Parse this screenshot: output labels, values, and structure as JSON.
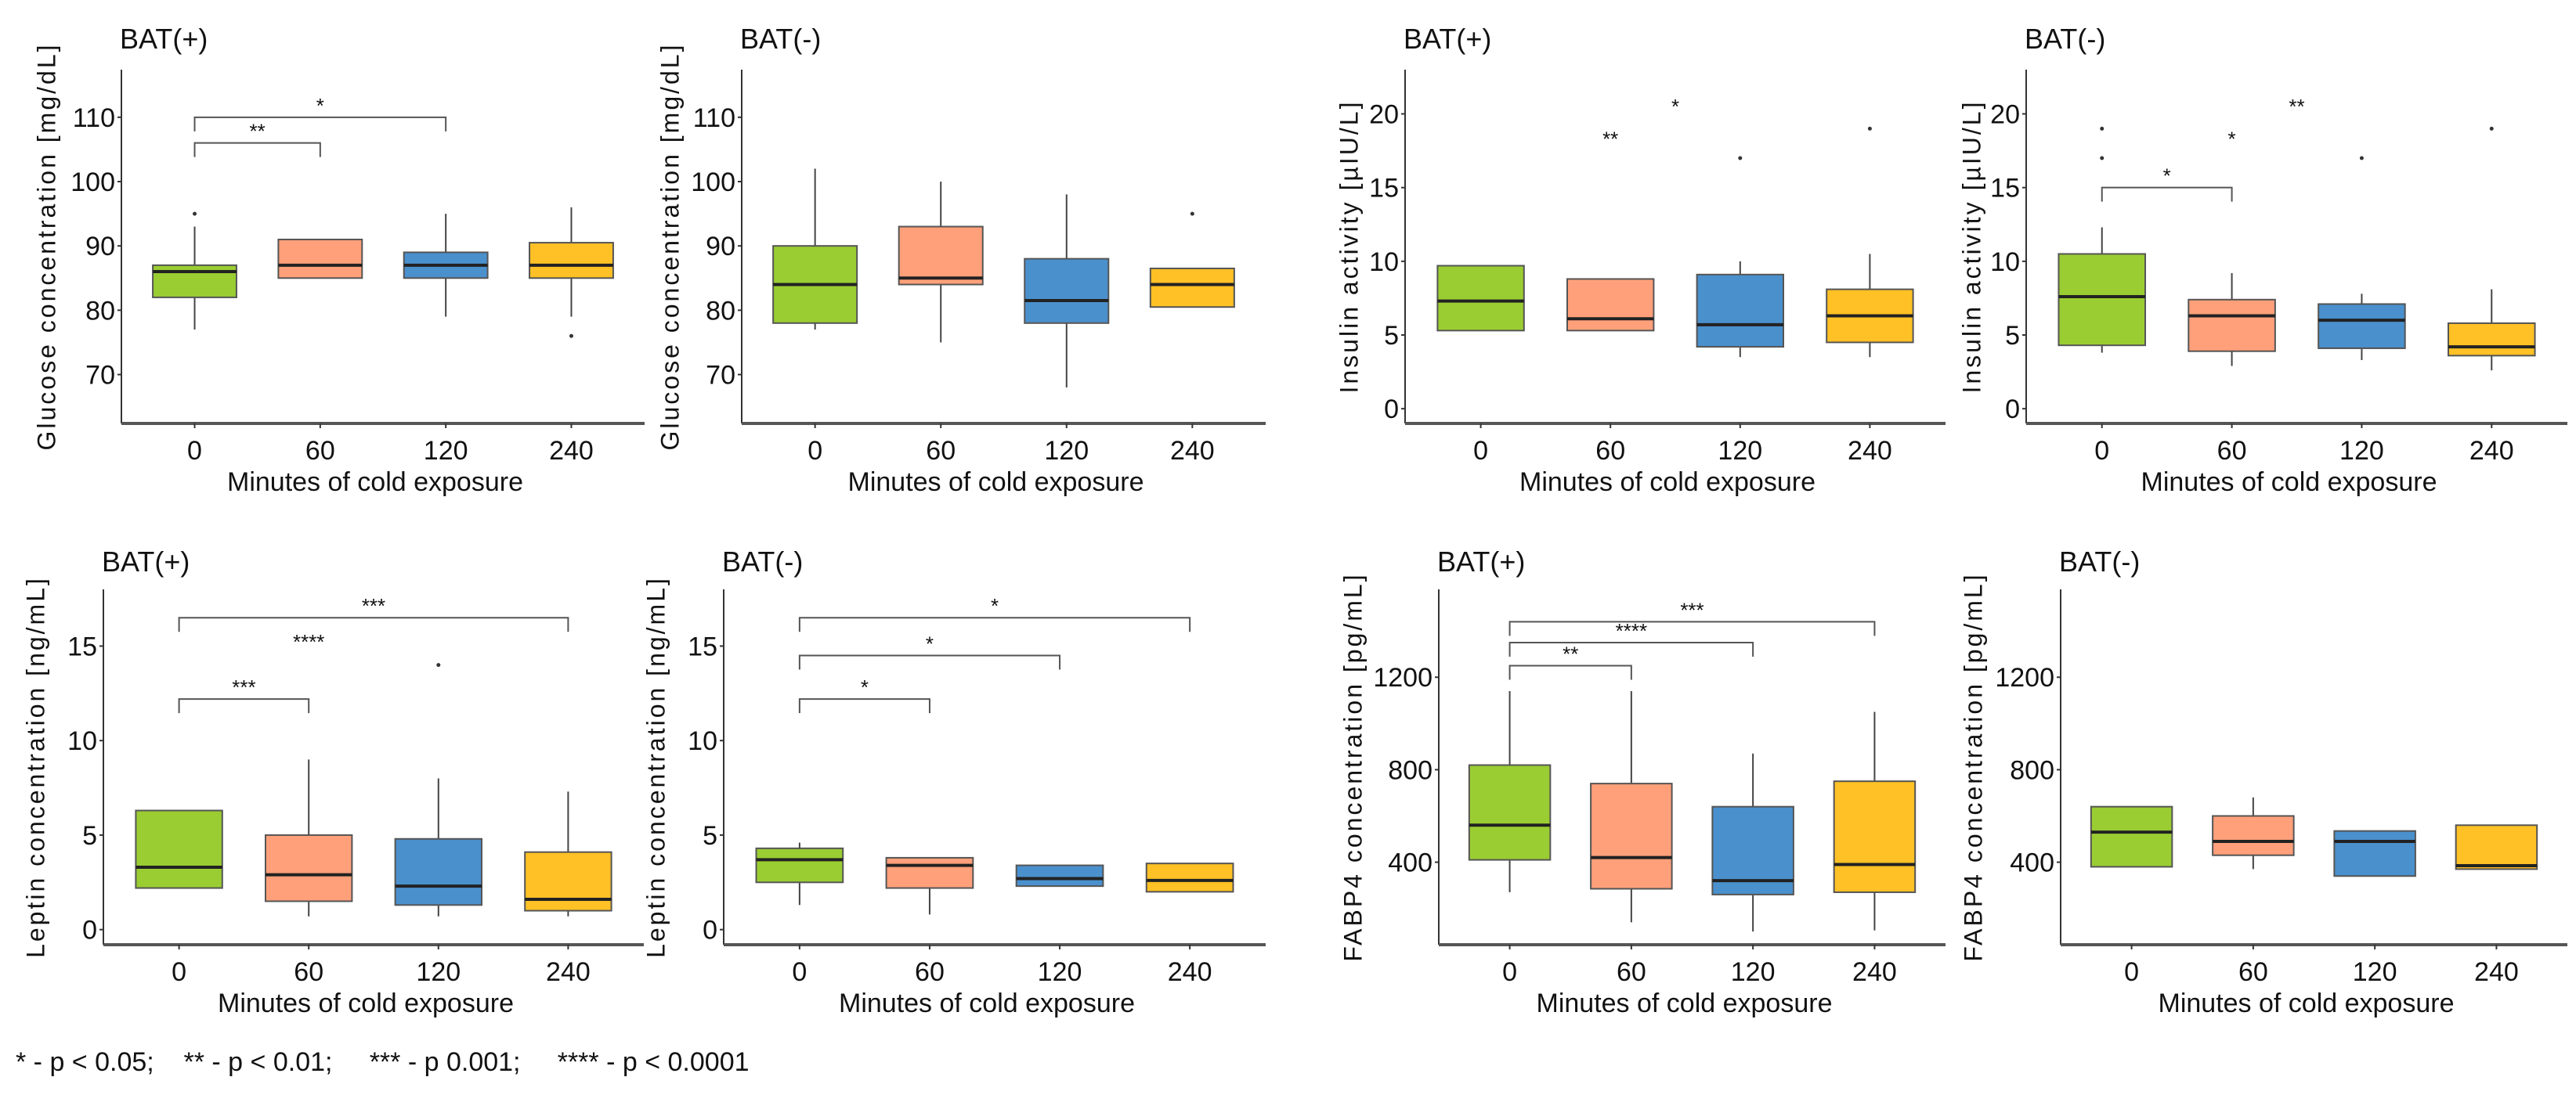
{
  "colors": [
    "#9ACD32",
    "#FFA07A",
    "#4A90CD",
    "#FFC125"
  ],
  "footnote": "* - p < 0.05;    ** - p < 0.01;     *** - p 0.001;     **** - p < 0.0001",
  "chart_data": [
    {
      "type": "box",
      "title": "BAT(+)",
      "ylabel": "Glucose concentration [mg/dL]",
      "xlabel": "Minutes of cold exposure",
      "categories": [
        "0",
        "60",
        "120",
        "240"
      ],
      "ylim": [
        62.4,
        117.4
      ],
      "yticks": [
        70,
        80,
        90,
        100,
        110
      ],
      "boxes": [
        {
          "q1": 82,
          "median": 86,
          "q3": 87,
          "whisker_low": 77,
          "whisker_high": 93,
          "outliers": [
            95
          ]
        },
        {
          "q1": 85,
          "median": 87,
          "q3": 91,
          "whisker_low": 85,
          "whisker_high": 91,
          "outliers": []
        },
        {
          "q1": 85,
          "median": 87,
          "q3": 89,
          "whisker_low": 79,
          "whisker_high": 95,
          "outliers": []
        },
        {
          "q1": 85,
          "median": 87,
          "q3": 90.5,
          "whisker_low": 79,
          "whisker_high": 96,
          "outliers": [
            76
          ]
        }
      ],
      "significance": [
        {
          "from": 0,
          "to": 2,
          "y": 110,
          "label": "*",
          "bracket": true
        },
        {
          "from": 0,
          "to": 1,
          "y": 106,
          "label": "**",
          "bracket": true
        }
      ]
    },
    {
      "type": "box",
      "title": "BAT(-)",
      "ylabel": "Glucose concentration [mg/dL]",
      "xlabel": "Minutes of cold exposure",
      "categories": [
        "0",
        "60",
        "120",
        "240"
      ],
      "ylim": [
        62.4,
        117.4
      ],
      "yticks": [
        70,
        80,
        90,
        100,
        110
      ],
      "boxes": [
        {
          "q1": 78,
          "median": 84,
          "q3": 90,
          "whisker_low": 77,
          "whisker_high": 102,
          "outliers": []
        },
        {
          "q1": 84,
          "median": 85,
          "q3": 93,
          "whisker_low": 75,
          "whisker_high": 100,
          "outliers": []
        },
        {
          "q1": 78,
          "median": 81.5,
          "q3": 88,
          "whisker_low": 68,
          "whisker_high": 98,
          "outliers": []
        },
        {
          "q1": 80.5,
          "median": 84,
          "q3": 86.5,
          "whisker_low": 80.5,
          "whisker_high": 86.5,
          "outliers": [
            95
          ]
        }
      ],
      "significance": []
    },
    {
      "type": "box",
      "title": "BAT(+)",
      "ylabel": "Insulin activity [µIU/L]",
      "xlabel": "Minutes of cold exposure",
      "categories": [
        "0",
        "60",
        "120",
        "240"
      ],
      "ylim": [
        -1,
        23
      ],
      "yticks": [
        0,
        5,
        10,
        15,
        20
      ],
      "boxes": [
        {
          "q1": 5.3,
          "median": 7.3,
          "q3": 9.7,
          "whisker_low": 5.3,
          "whisker_high": 9.7,
          "outliers": []
        },
        {
          "q1": 5.3,
          "median": 6.1,
          "q3": 8.8,
          "whisker_low": 5.3,
          "whisker_high": 8.8,
          "outliers": []
        },
        {
          "q1": 4.2,
          "median": 5.7,
          "q3": 9.1,
          "whisker_low": 3.5,
          "whisker_high": 10,
          "outliers": [
            17
          ]
        },
        {
          "q1": 4.5,
          "median": 6.3,
          "q3": 8.1,
          "whisker_low": 3.5,
          "whisker_high": 10.5,
          "outliers": [
            19
          ]
        }
      ],
      "significance": [
        {
          "from": 1,
          "to": 1,
          "y": 17.5,
          "label": "**",
          "bracket": false
        },
        {
          "from": 1.5,
          "to": 1.5,
          "y": 19.7,
          "label": "*",
          "bracket": false
        }
      ]
    },
    {
      "type": "box",
      "title": "BAT(-)",
      "ylabel": "Insulin activity [µIU/L]",
      "xlabel": "Minutes of cold exposure",
      "categories": [
        "0",
        "60",
        "120",
        "240"
      ],
      "ylim": [
        -1,
        23
      ],
      "yticks": [
        0,
        5,
        10,
        15,
        20
      ],
      "boxes": [
        {
          "q1": 4.3,
          "median": 7.6,
          "q3": 10.5,
          "whisker_low": 3.8,
          "whisker_high": 12.3,
          "outliers": [
            17,
            19
          ]
        },
        {
          "q1": 3.9,
          "median": 6.3,
          "q3": 7.4,
          "whisker_low": 2.9,
          "whisker_high": 9.2,
          "outliers": []
        },
        {
          "q1": 4.1,
          "median": 6.0,
          "q3": 7.1,
          "whisker_low": 3.3,
          "whisker_high": 7.8,
          "outliers": [
            17
          ]
        },
        {
          "q1": 3.6,
          "median": 4.2,
          "q3": 5.8,
          "whisker_low": 2.6,
          "whisker_high": 8.1,
          "outliers": [
            19
          ]
        }
      ],
      "significance": [
        {
          "from": 0,
          "to": 1,
          "y": 15,
          "label": "*",
          "bracket": true
        },
        {
          "from": 1,
          "to": 1,
          "y": 17.5,
          "label": "*",
          "bracket": false
        },
        {
          "from": 1.5,
          "to": 1.5,
          "y": 19.7,
          "label": "**",
          "bracket": false
        }
      ]
    },
    {
      "type": "box",
      "title": "BAT(+)",
      "ylabel": "Leptin concentration [ng/mL]",
      "xlabel": "Minutes of cold exposure",
      "categories": [
        "0",
        "60",
        "120",
        "240"
      ],
      "ylim": [
        -0.8,
        18
      ],
      "yticks": [
        0,
        5,
        10,
        15
      ],
      "boxes": [
        {
          "q1": 2.2,
          "median": 3.3,
          "q3": 6.3,
          "whisker_low": 2.2,
          "whisker_high": 6.3,
          "outliers": []
        },
        {
          "q1": 1.5,
          "median": 2.9,
          "q3": 5.0,
          "whisker_low": 0.7,
          "whisker_high": 9,
          "outliers": []
        },
        {
          "q1": 1.3,
          "median": 2.3,
          "q3": 4.8,
          "whisker_low": 0.7,
          "whisker_high": 8,
          "outliers": [
            14
          ]
        },
        {
          "q1": 1.0,
          "median": 1.6,
          "q3": 4.1,
          "whisker_low": 0.7,
          "whisker_high": 7.3,
          "outliers": []
        }
      ],
      "significance": [
        {
          "from": 0,
          "to": 3,
          "y": 16.5,
          "label": "***",
          "bracket": true
        },
        {
          "from": 1,
          "to": 1,
          "y": 14.6,
          "label": "****",
          "bracket": false
        },
        {
          "from": 0,
          "to": 1,
          "y": 12.2,
          "label": "***",
          "bracket": true
        }
      ]
    },
    {
      "type": "box",
      "title": "BAT(-)",
      "ylabel": "Leptin concentration [ng/mL]",
      "xlabel": "Minutes of cold exposure",
      "categories": [
        "0",
        "60",
        "120",
        "240"
      ],
      "ylim": [
        -0.8,
        18
      ],
      "yticks": [
        0,
        5,
        10,
        15
      ],
      "boxes": [
        {
          "q1": 2.5,
          "median": 3.7,
          "q3": 4.3,
          "whisker_low": 1.3,
          "whisker_high": 4.6,
          "outliers": []
        },
        {
          "q1": 2.2,
          "median": 3.4,
          "q3": 3.8,
          "whisker_low": 0.8,
          "whisker_high": 3.8,
          "outliers": []
        },
        {
          "q1": 2.3,
          "median": 2.7,
          "q3": 3.4,
          "whisker_low": 2.3,
          "whisker_high": 3.4,
          "outliers": []
        },
        {
          "q1": 2.0,
          "median": 2.6,
          "q3": 3.5,
          "whisker_low": 2.0,
          "whisker_high": 3.5,
          "outliers": []
        }
      ],
      "significance": [
        {
          "from": 0,
          "to": 3,
          "y": 16.5,
          "label": "*",
          "bracket": true
        },
        {
          "from": 0,
          "to": 2,
          "y": 14.5,
          "label": "*",
          "bracket": true
        },
        {
          "from": 0,
          "to": 1,
          "y": 12.2,
          "label": "*",
          "bracket": true
        }
      ]
    },
    {
      "type": "box",
      "title": "BAT(+)",
      "ylabel": "FABP4 concentration [pg/mL]",
      "xlabel": "Minutes of cold exposure",
      "categories": [
        "0",
        "60",
        "120",
        "240"
      ],
      "ylim": [
        43,
        1580
      ],
      "yticks": [
        400,
        800,
        1200
      ],
      "boxes": [
        {
          "q1": 410,
          "median": 560,
          "q3": 820,
          "whisker_low": 270,
          "whisker_high": 1140,
          "outliers": []
        },
        {
          "q1": 285,
          "median": 420,
          "q3": 740,
          "whisker_low": 140,
          "whisker_high": 1140,
          "outliers": []
        },
        {
          "q1": 260,
          "median": 320,
          "q3": 640,
          "whisker_low": 100,
          "whisker_high": 870,
          "outliers": []
        },
        {
          "q1": 270,
          "median": 390,
          "q3": 750,
          "whisker_low": 105,
          "whisker_high": 1050,
          "outliers": []
        }
      ],
      "significance": [
        {
          "from": 0,
          "to": 1,
          "y": 1250,
          "label": "**",
          "bracket": true
        },
        {
          "from": 0,
          "to": 2,
          "y": 1350,
          "label": "****",
          "bracket": true
        },
        {
          "from": 0,
          "to": 3,
          "y": 1440,
          "label": "***",
          "bracket": true
        }
      ]
    },
    {
      "type": "box",
      "title": "BAT(-)",
      "ylabel": "FABP4 concentration [pg/mL]",
      "xlabel": "Minutes of cold exposure",
      "categories": [
        "0",
        "60",
        "120",
        "240"
      ],
      "ylim": [
        43,
        1580
      ],
      "yticks": [
        400,
        800,
        1200
      ],
      "boxes": [
        {
          "q1": 380,
          "median": 530,
          "q3": 640,
          "whisker_low": 380,
          "whisker_high": 640,
          "outliers": []
        },
        {
          "q1": 430,
          "median": 490,
          "q3": 600,
          "whisker_low": 370,
          "whisker_high": 680,
          "outliers": []
        },
        {
          "q1": 340,
          "median": 490,
          "q3": 535,
          "whisker_low": 340,
          "whisker_high": 535,
          "outliers": []
        },
        {
          "q1": 370,
          "median": 385,
          "q3": 560,
          "whisker_low": 370,
          "whisker_high": 560,
          "outliers": []
        }
      ],
      "significance": []
    }
  ]
}
